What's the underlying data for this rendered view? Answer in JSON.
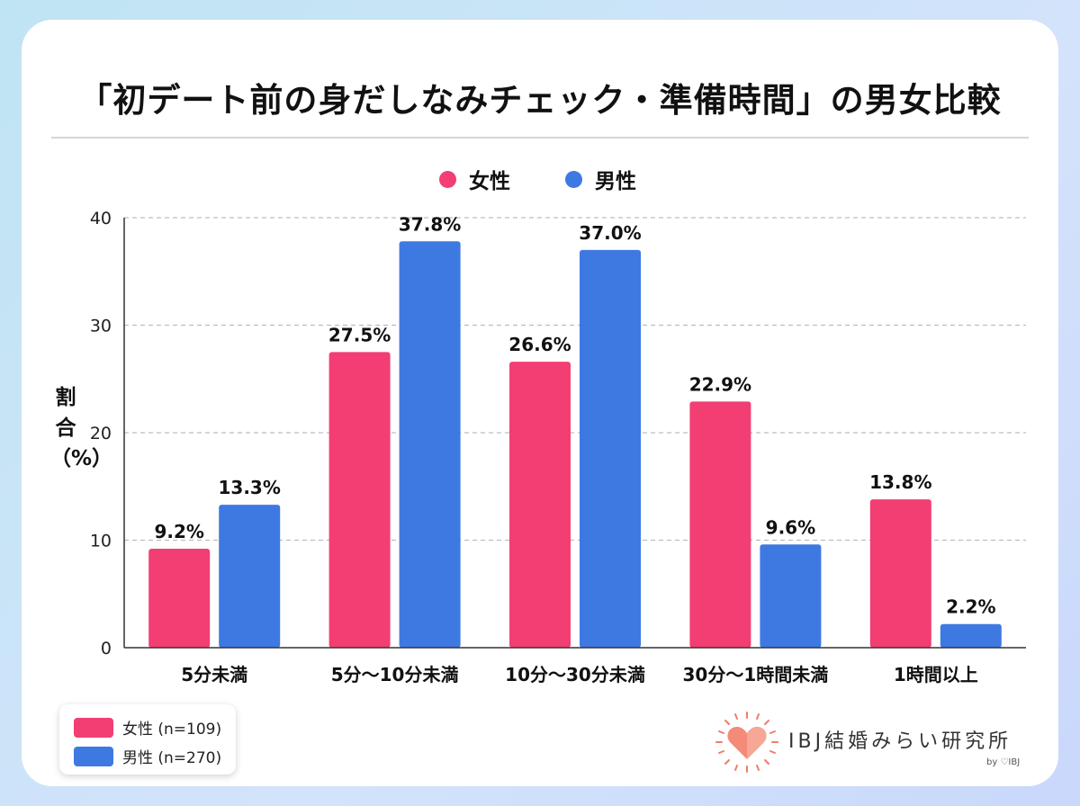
{
  "chart_data": {
    "type": "bar",
    "title": "「初デート前の身だしなみチェック・準備時間」の男女比較",
    "ylabel": "割合（%）",
    "xlabel": "",
    "ylim": [
      0,
      40
    ],
    "yticks": [
      0,
      10,
      20,
      30,
      40
    ],
    "grid": true,
    "categories": [
      "5分未満",
      "5分〜10分未満",
      "10分〜30分未満",
      "30分〜1時間未満",
      "1時間以上"
    ],
    "series": [
      {
        "name": "女性",
        "color": "#f23e73",
        "values": [
          9.2,
          27.5,
          26.6,
          22.9,
          13.8
        ],
        "labels": [
          "9.2%",
          "27.5%",
          "26.6%",
          "22.9%",
          "13.8%"
        ]
      },
      {
        "name": "男性",
        "color": "#3e79e2",
        "values": [
          13.3,
          37.8,
          37.0,
          9.6,
          2.2
        ],
        "labels": [
          "13.3%",
          "37.8%",
          "37.0%",
          "9.6%",
          "2.2%"
        ]
      }
    ],
    "legend_top": [
      "女性",
      "男性"
    ],
    "legend_bottom": [
      "女性 (n=109)",
      "男性 (n=270)"
    ]
  },
  "logo": {
    "text": "IBJ結婚みらい研究所",
    "byline": "by ♡IBJ",
    "accent": "#f07c6c"
  }
}
